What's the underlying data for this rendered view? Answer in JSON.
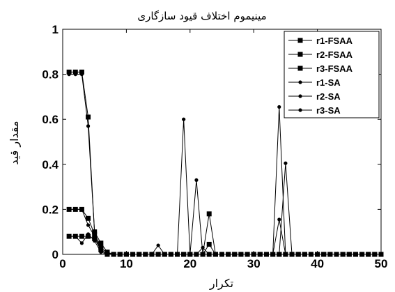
{
  "chart_data": {
    "type": "line",
    "title": "مینیموم اختلاف قیود سازگاری",
    "xlabel": "تکرار",
    "ylabel": "مقدار قید",
    "xlim": [
      0,
      50
    ],
    "ylim": [
      0,
      1
    ],
    "x_ticks": [
      0,
      10,
      20,
      30,
      40,
      50
    ],
    "y_ticks": [
      0,
      0.2,
      0.4,
      0.6,
      0.8,
      1
    ],
    "y_tick_labels": [
      "0",
      "0.2",
      "0.4",
      "0.6",
      "0.8",
      "1"
    ],
    "grid": false,
    "legend_position": "top-right",
    "x": [
      1,
      2,
      3,
      4,
      5,
      6,
      7,
      8,
      9,
      10,
      11,
      12,
      13,
      14,
      15,
      16,
      17,
      18,
      19,
      20,
      21,
      22,
      23,
      24,
      25,
      26,
      27,
      28,
      29,
      30,
      31,
      32,
      33,
      34,
      35,
      36,
      37,
      38,
      39,
      40,
      41,
      42,
      43,
      44,
      45,
      46,
      47,
      48,
      49,
      50
    ],
    "series": [
      {
        "name": "r1-FSAA",
        "marker": "square",
        "values": [
          0.2,
          0.2,
          0.2,
          0.16,
          0.09,
          0.03,
          0.005,
          0,
          0,
          0,
          0,
          0,
          0,
          0,
          0,
          0,
          0,
          0,
          0,
          0,
          0,
          0,
          0,
          0,
          0,
          0,
          0,
          0,
          0,
          0,
          0,
          0,
          0,
          0,
          0,
          0,
          0,
          0,
          0,
          0,
          0,
          0,
          0,
          0,
          0,
          0,
          0,
          0,
          0,
          0
        ]
      },
      {
        "name": "r2-FSAA",
        "marker": "square",
        "values": [
          0.08,
          0.08,
          0.08,
          0.08,
          0.07,
          0.02,
          0,
          0,
          0,
          0,
          0,
          0,
          0,
          0,
          0,
          0,
          0,
          0,
          0,
          0,
          0,
          0,
          0.18,
          0,
          0,
          0,
          0,
          0,
          0,
          0,
          0,
          0,
          0,
          0,
          0,
          0,
          0,
          0,
          0,
          0,
          0,
          0,
          0,
          0,
          0,
          0,
          0,
          0,
          0,
          0
        ]
      },
      {
        "name": "r3-FSAA",
        "marker": "square",
        "values": [
          0.81,
          0.81,
          0.81,
          0.61,
          0.1,
          0.05,
          0.01,
          0,
          0,
          0,
          0,
          0,
          0,
          0,
          0,
          0,
          0,
          0,
          0,
          0,
          0,
          0,
          0.045,
          0,
          0,
          0,
          0,
          0,
          0,
          0,
          0,
          0,
          0,
          0,
          0,
          0,
          0,
          0,
          0,
          0,
          0,
          0,
          0,
          0,
          0,
          0,
          0,
          0,
          0,
          0
        ]
      },
      {
        "name": "r1-SA",
        "marker": "dot",
        "values": [
          0.08,
          0.08,
          0.05,
          0.09,
          0.06,
          0.01,
          0,
          0,
          0,
          0,
          0,
          0,
          0,
          0,
          0,
          0,
          0,
          0,
          0,
          0,
          0.33,
          0,
          0,
          0,
          0,
          0,
          0,
          0,
          0,
          0,
          0,
          0,
          0,
          0.655,
          0,
          0,
          0,
          0,
          0,
          0,
          0,
          0,
          0,
          0,
          0,
          0,
          0,
          0,
          0,
          0
        ]
      },
      {
        "name": "r2-SA",
        "marker": "dot",
        "values": [
          0.8,
          0.8,
          0.8,
          0.57,
          0.1,
          0.02,
          0,
          0,
          0,
          0,
          0,
          0,
          0,
          0,
          0.04,
          0,
          0,
          0,
          0.6,
          0,
          0,
          0.03,
          0,
          0,
          0,
          0,
          0,
          0,
          0,
          0,
          0,
          0,
          0,
          0,
          0.405,
          0,
          0,
          0,
          0,
          0,
          0,
          0,
          0,
          0,
          0,
          0,
          0,
          0,
          0,
          0
        ]
      },
      {
        "name": "r3-SA",
        "marker": "dot",
        "values": [
          0.2,
          0.2,
          0.2,
          0.13,
          0.08,
          0.02,
          0,
          0,
          0,
          0,
          0,
          0,
          0,
          0,
          0,
          0,
          0,
          0,
          0,
          0,
          0,
          0,
          0,
          0,
          0,
          0,
          0,
          0,
          0,
          0,
          0,
          0,
          0,
          0.155,
          0,
          0,
          0,
          0,
          0,
          0,
          0,
          0,
          0,
          0,
          0,
          0,
          0,
          0,
          0,
          0
        ]
      }
    ]
  }
}
